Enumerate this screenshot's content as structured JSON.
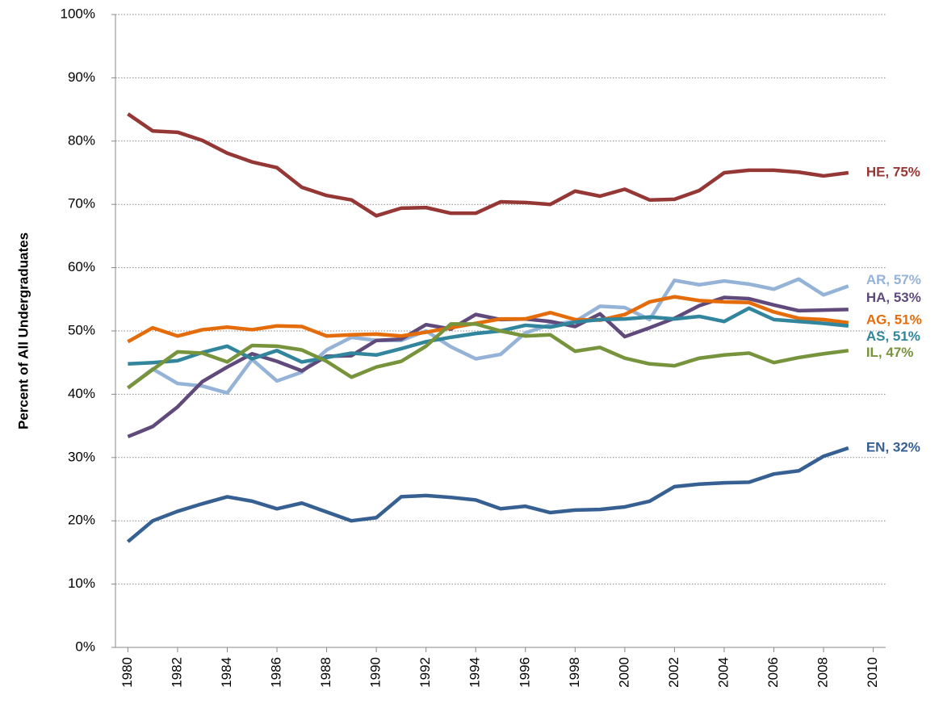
{
  "chart_data": {
    "type": "line",
    "y_label": "Percent of All Undergraduates",
    "x": [
      1980,
      1981,
      1982,
      1983,
      1984,
      1985,
      1986,
      1987,
      1988,
      1989,
      1990,
      1991,
      1992,
      1993,
      1994,
      1995,
      1996,
      1997,
      1998,
      1999,
      2000,
      2001,
      2002,
      2003,
      2004,
      2005,
      2006,
      2007,
      2008,
      2009
    ],
    "xlim": [
      1979.5,
      2010.5
    ],
    "xticks": [
      1980,
      1982,
      1984,
      1986,
      1988,
      1990,
      1992,
      1994,
      1996,
      1998,
      2000,
      2002,
      2004,
      2006,
      2008,
      2010
    ],
    "ylim": [
      0,
      100
    ],
    "yticks": [
      {
        "value": 0,
        "label": "0%"
      },
      {
        "value": 10,
        "label": "10%"
      },
      {
        "value": 20,
        "label": "20%"
      },
      {
        "value": 30,
        "label": "30%"
      },
      {
        "value": 40,
        "label": "40%"
      },
      {
        "value": 50,
        "label": "50%"
      },
      {
        "value": 60,
        "label": "60%"
      },
      {
        "value": 70,
        "label": "70%"
      },
      {
        "value": 80,
        "label": "80%"
      },
      {
        "value": 90,
        "label": "90%"
      },
      {
        "value": 100,
        "label": "100%"
      }
    ],
    "grid": true,
    "series": [
      {
        "name": "HE, 75%",
        "color": "#953735",
        "values": [
          84.3,
          81.6,
          81.4,
          80.1,
          78.1,
          76.7,
          75.8,
          72.7,
          71.4,
          70.7,
          68.2,
          69.4,
          69.5,
          68.6,
          68.6,
          70.4,
          70.3,
          70.0,
          72.1,
          71.3,
          72.4,
          70.7,
          70.8,
          72.2,
          75.0,
          75.4,
          75.4,
          75.1,
          74.5,
          75.0
        ]
      },
      {
        "name": "EN, 32%",
        "color": "#376092",
        "values": [
          16.7,
          20.0,
          21.5,
          22.7,
          23.8,
          23.1,
          21.9,
          22.8,
          21.4,
          20.0,
          20.5,
          23.8,
          24.0,
          23.7,
          23.3,
          21.9,
          22.3,
          21.3,
          21.7,
          21.8,
          22.2,
          23.1,
          25.4,
          25.8,
          26.0,
          26.1,
          27.4,
          27.9,
          30.2,
          31.5
        ]
      },
      {
        "name": "AR, 57%",
        "color": "#95b3d7",
        "values": [
          41.0,
          44.0,
          41.7,
          41.3,
          40.2,
          45.5,
          42.1,
          43.5,
          47.0,
          49.0,
          48.5,
          48.5,
          50.0,
          47.5,
          45.6,
          46.3,
          49.7,
          51.0,
          51.5,
          53.9,
          53.7,
          51.8,
          58.0,
          57.3,
          57.9,
          57.4,
          56.6,
          58.2,
          55.7,
          57.1
        ]
      },
      {
        "name": "HA, 53%",
        "color": "#604a7b",
        "values": [
          33.3,
          34.9,
          38.0,
          42.0,
          44.3,
          46.4,
          45.2,
          43.7,
          46.0,
          46.1,
          48.5,
          48.7,
          51.0,
          50.3,
          52.6,
          51.8,
          51.9,
          51.5,
          50.7,
          52.7,
          49.1,
          50.5,
          52.0,
          54.0,
          55.3,
          55.1,
          54.1,
          53.2,
          53.3,
          53.4
        ]
      },
      {
        "name": "AG, 51%",
        "color": "#e46c0a",
        "values": [
          48.3,
          50.5,
          49.2,
          50.2,
          50.6,
          50.2,
          50.8,
          50.7,
          49.2,
          49.4,
          49.5,
          49.2,
          49.8,
          50.5,
          51.2,
          51.9,
          51.9,
          52.9,
          51.8,
          51.7,
          52.6,
          54.6,
          55.4,
          54.8,
          54.6,
          54.5,
          53.0,
          52.0,
          51.8,
          51.3
        ]
      },
      {
        "name": "AS, 51%",
        "color": "#31859c",
        "values": [
          44.8,
          45.0,
          45.3,
          46.6,
          47.6,
          45.6,
          46.9,
          45.1,
          45.8,
          46.5,
          46.2,
          47.2,
          48.3,
          49.0,
          49.6,
          50.0,
          50.9,
          50.6,
          51.4,
          51.8,
          51.9,
          52.2,
          51.9,
          52.3,
          51.5,
          53.6,
          51.8,
          51.5,
          51.2,
          50.8
        ]
      },
      {
        "name": "IL, 47%",
        "color": "#77933c",
        "values": [
          41.0,
          43.9,
          46.7,
          46.5,
          45.1,
          47.7,
          47.6,
          47.0,
          45.2,
          42.7,
          44.3,
          45.2,
          47.6,
          51.1,
          51.1,
          50.0,
          49.2,
          49.4,
          46.8,
          47.4,
          45.7,
          44.8,
          44.5,
          45.7,
          46.2,
          46.5,
          45.0,
          45.8,
          46.4,
          46.9
        ]
      }
    ]
  }
}
